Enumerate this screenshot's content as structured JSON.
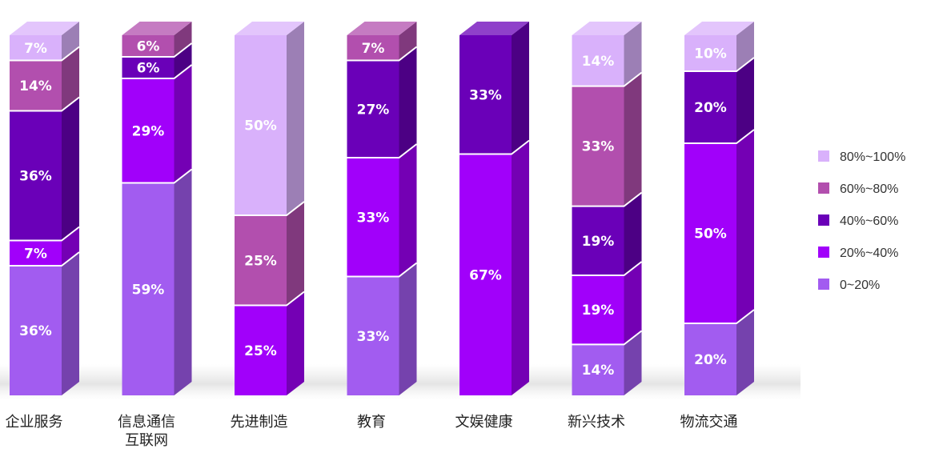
{
  "chart_data": {
    "type": "bar",
    "stacked": true,
    "percent": true,
    "categories": [
      [
        "企业服务"
      ],
      [
        "信息通信",
        "互联网"
      ],
      [
        "先进制造"
      ],
      [
        "教育"
      ],
      [
        "文娱健康"
      ],
      [
        "新兴技术"
      ],
      [
        "物流交通"
      ]
    ],
    "series": [
      {
        "name": "0~20%",
        "color": "#a25cf0",
        "values": [
          36,
          59,
          0,
          33,
          0,
          14,
          20
        ]
      },
      {
        "name": "20%~40%",
        "color": "#a100fa",
        "values": [
          7,
          29,
          25,
          33,
          67,
          19,
          50
        ]
      },
      {
        "name": "40%~60%",
        "color": "#6a00b8",
        "values": [
          36,
          6,
          0,
          27,
          33,
          19,
          20
        ]
      },
      {
        "name": "60%~80%",
        "color": "#b24fae",
        "values": [
          14,
          6,
          25,
          7,
          0,
          33,
          0
        ]
      },
      {
        "name": "80%~100%",
        "color": "#d9b1fb",
        "values": [
          7,
          0,
          50,
          0,
          0,
          14,
          10
        ]
      }
    ],
    "value_suffix": "%",
    "legend_position": "right",
    "grid": false
  }
}
